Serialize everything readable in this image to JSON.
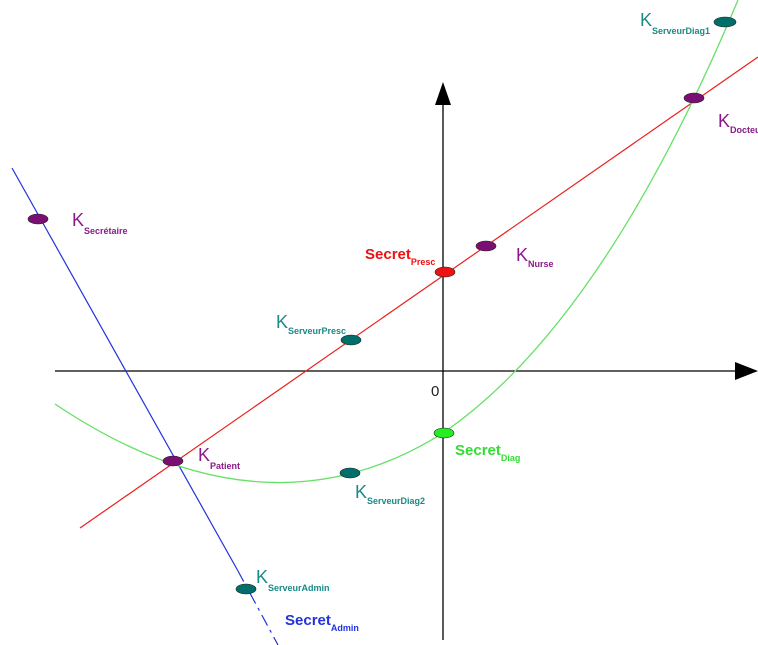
{
  "origin_label": "0",
  "colors": {
    "red_line": "#e8211c",
    "blue_line": "#2233dd",
    "green_curve": "#66e066",
    "purple_point": "#7a0f73",
    "teal_point": "#006e6a",
    "red_point": "#ee1111",
    "green_point": "#22ee22",
    "axis": "#000000"
  },
  "points": {
    "k_secretaire": {
      "main": "K",
      "sub": "Secrétaire"
    },
    "k_patient": {
      "main": "K",
      "sub": "Patient"
    },
    "k_serveur_presc": {
      "main": "K",
      "sub": "ServeurPresc"
    },
    "k_serveur_diag2": {
      "main": "K",
      "sub": "ServeurDiag2"
    },
    "k_serveur_admin": {
      "main": "K",
      "sub": "ServeurAdmin"
    },
    "k_nurse": {
      "main": "K",
      "sub": "Nurse"
    },
    "k_docteur": {
      "main": "K",
      "sub": "Docteur"
    },
    "k_serveur_diag1": {
      "main": "K",
      "sub": "ServeurDiag1"
    },
    "secret_presc": {
      "main": "Secret",
      "sub": "Presc"
    },
    "secret_diag": {
      "main": "Secret",
      "sub": "Diag"
    },
    "secret_admin": {
      "main": "Secret",
      "sub": "Admin"
    }
  }
}
